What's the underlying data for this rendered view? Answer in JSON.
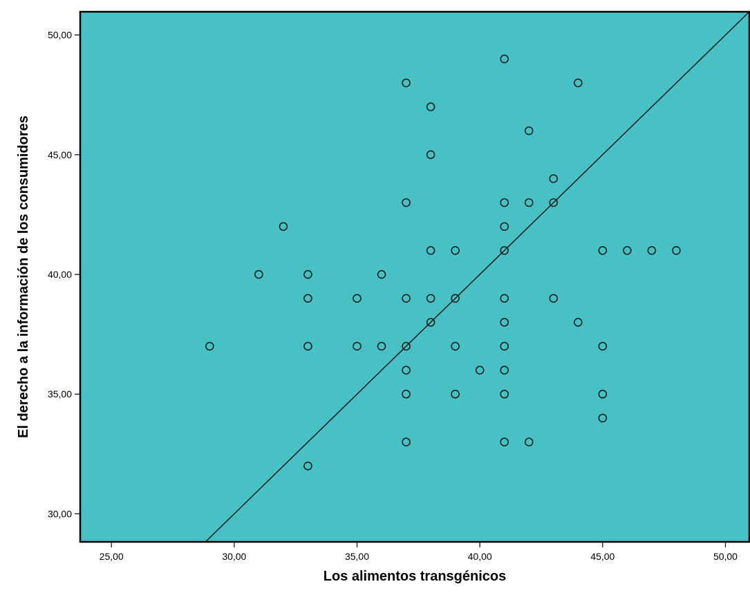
{
  "chart_data": {
    "type": "scatter",
    "title": "",
    "xlabel": "Los alimentos transgénicos",
    "ylabel": "El derecho a la información de los consumidores",
    "xlim": [
      23.7,
      51.0
    ],
    "ylim": [
      28.8,
      51.0
    ],
    "xticks": [
      25,
      30,
      35,
      40,
      45,
      50
    ],
    "yticks": [
      30,
      35,
      40,
      45,
      50
    ],
    "xtick_labels": [
      "25,00",
      "30,00",
      "35,00",
      "40,00",
      "45,00",
      "50,00"
    ],
    "ytick_labels": [
      "30,00",
      "35,00",
      "40,00",
      "45,00",
      "50,00"
    ],
    "reference_line": {
      "type": "identity",
      "from": [
        23.7,
        23.7
      ],
      "to": [
        51,
        51
      ]
    },
    "grid": false,
    "colors": {
      "plot_background": "#48C1C4",
      "marker_edge": "#1f1f1f",
      "line": "#1a1a1a",
      "frame": "#000000"
    },
    "points": [
      [
        29,
        37
      ],
      [
        31,
        40
      ],
      [
        32,
        42
      ],
      [
        33,
        40
      ],
      [
        33,
        39
      ],
      [
        33,
        37
      ],
      [
        33,
        32
      ],
      [
        35,
        39
      ],
      [
        35,
        37
      ],
      [
        36,
        40
      ],
      [
        36,
        37
      ],
      [
        37,
        48
      ],
      [
        37,
        43
      ],
      [
        37,
        39
      ],
      [
        37,
        37
      ],
      [
        37,
        36
      ],
      [
        37,
        35
      ],
      [
        37,
        33
      ],
      [
        38,
        47
      ],
      [
        38,
        45
      ],
      [
        38,
        41
      ],
      [
        38,
        39
      ],
      [
        38,
        38
      ],
      [
        39,
        41
      ],
      [
        39,
        39
      ],
      [
        39,
        37
      ],
      [
        39,
        35
      ],
      [
        40,
        36
      ],
      [
        41,
        49
      ],
      [
        41,
        43
      ],
      [
        41,
        42
      ],
      [
        41,
        41
      ],
      [
        41,
        39
      ],
      [
        41,
        38
      ],
      [
        41,
        37
      ],
      [
        41,
        36
      ],
      [
        41,
        35
      ],
      [
        41,
        33
      ],
      [
        42,
        46
      ],
      [
        42,
        43
      ],
      [
        42,
        33
      ],
      [
        43,
        44
      ],
      [
        43,
        43
      ],
      [
        43,
        39
      ],
      [
        44,
        48
      ],
      [
        44,
        38
      ],
      [
        45,
        41
      ],
      [
        45,
        37
      ],
      [
        45,
        35
      ],
      [
        45,
        34
      ],
      [
        46,
        41
      ],
      [
        47,
        41
      ],
      [
        48,
        41
      ]
    ]
  }
}
